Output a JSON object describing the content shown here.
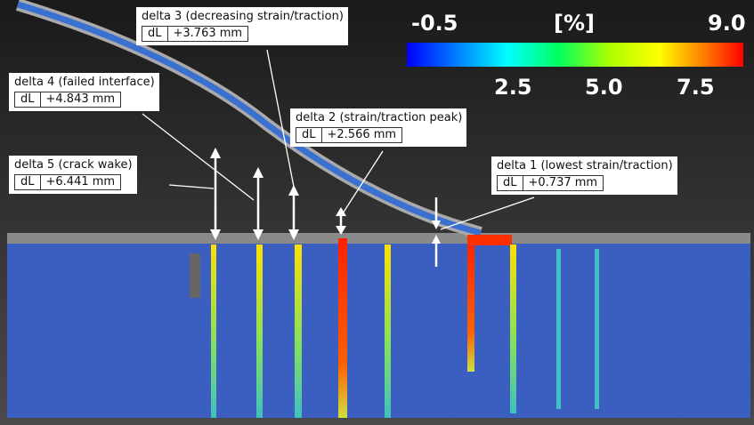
{
  "colorbar": {
    "min_label": "-0.5",
    "unit": "[%]",
    "max_label": "9.0",
    "tick_labels": [
      "2.5",
      "5.0",
      "7.5"
    ]
  },
  "annotations": [
    {
      "title": "delta 3 (decreasing strain/traction)",
      "key": "dL",
      "value": "+3.763 mm"
    },
    {
      "title": "delta 4 (failed interface)",
      "key": "dL",
      "value": "+4.843 mm"
    },
    {
      "title": "delta 2 (strain/traction peak)",
      "key": "dL",
      "value": "+2.566 mm"
    },
    {
      "title": "delta 5 (crack wake)",
      "key": "dL",
      "value": "+6.441 mm"
    },
    {
      "title": "delta 1 (lowest strain/traction)",
      "key": "dL",
      "value": "+0.737 mm"
    }
  ]
}
